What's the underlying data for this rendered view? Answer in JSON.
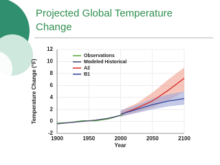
{
  "slide": {
    "title_lines": [
      "Projected Global Temperature",
      "Change"
    ]
  },
  "chart_data": {
    "type": "line",
    "x_label": "Year",
    "y_label": "Temperature Change (°F)",
    "xlim": [
      1900,
      2100
    ],
    "xticks": [
      1900,
      1950,
      2000,
      2050,
      2100
    ],
    "ylim": [
      -2,
      12
    ],
    "yticks": [
      -2,
      0,
      2,
      4,
      6,
      8,
      10,
      12
    ],
    "grid": true,
    "series": [
      {
        "name": "Observations",
        "color": "#5aa83c",
        "x": [
          1900,
          1920,
          1940,
          1960,
          1980,
          2000,
          2005
        ],
        "values": [
          -0.3,
          -0.2,
          0.1,
          0.1,
          0.4,
          1.0,
          1.3
        ]
      },
      {
        "name": "Modeled Historical",
        "color": "#4a4e6e",
        "x": [
          1900,
          1920,
          1940,
          1960,
          1980,
          2000
        ],
        "values": [
          -0.4,
          -0.2,
          0.0,
          0.2,
          0.5,
          1.0
        ]
      },
      {
        "name": "A2",
        "color": "#d8322e",
        "band_color": "#f0a090",
        "x": [
          2000,
          2025,
          2050,
          2075,
          2100
        ],
        "values": [
          1.2,
          2.2,
          3.4,
          5.2,
          7.2
        ],
        "lower": [
          0.8,
          1.5,
          2.3,
          3.5,
          5.0
        ],
        "upper": [
          1.8,
          3.0,
          4.8,
          7.0,
          9.0
        ]
      },
      {
        "name": "B1",
        "color": "#3b4fa0",
        "band_color": "#9fa6d8",
        "x": [
          2000,
          2025,
          2050,
          2075,
          2100
        ],
        "values": [
          1.2,
          2.0,
          2.8,
          3.4,
          3.8
        ],
        "lower": [
          0.8,
          1.4,
          2.0,
          2.5,
          2.8
        ],
        "upper": [
          1.8,
          2.7,
          3.8,
          4.5,
          5.0
        ]
      }
    ]
  }
}
